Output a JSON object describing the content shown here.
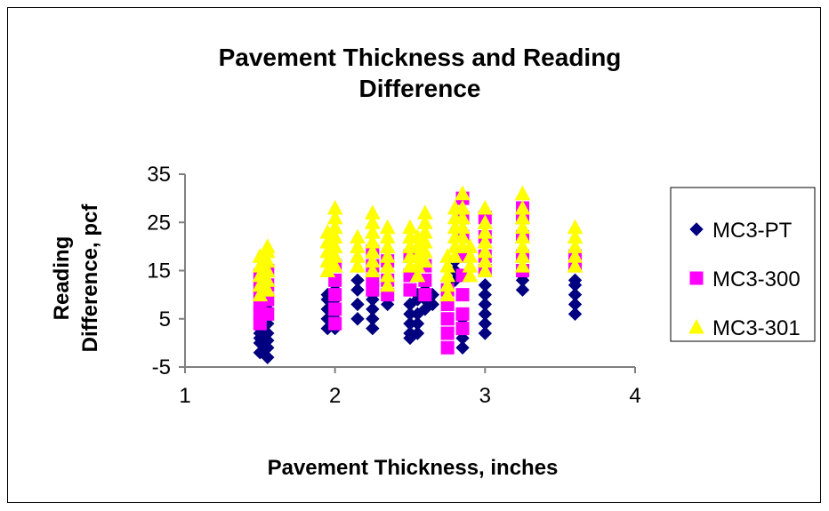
{
  "chart_data": {
    "type": "scatter",
    "title_lines": [
      "Pavement Thickness and Reading",
      "Difference"
    ],
    "xlabel": "Pavement Thickness, inches",
    "ylabel_lines": [
      "Reading",
      "Difference, pcf"
    ],
    "xlim": [
      1,
      4
    ],
    "ylim": [
      -5,
      35
    ],
    "x_ticks": [
      "1",
      "2",
      "3",
      "4"
    ],
    "y_ticks": [
      "35",
      "25",
      "15",
      "5",
      "-5"
    ],
    "grid": false,
    "legend_position": "right",
    "series": [
      {
        "name": "MC3-PT",
        "color": "#000080",
        "marker": "diamond",
        "points": [
          [
            1.5,
            -2
          ],
          [
            1.5,
            0
          ],
          [
            1.5,
            1
          ],
          [
            1.5,
            2
          ],
          [
            1.5,
            3
          ],
          [
            1.55,
            -3
          ],
          [
            1.55,
            -1
          ],
          [
            1.55,
            0.5
          ],
          [
            1.55,
            2
          ],
          [
            1.55,
            4
          ],
          [
            1.55,
            7
          ],
          [
            1.95,
            3
          ],
          [
            1.95,
            5
          ],
          [
            1.95,
            7
          ],
          [
            1.95,
            9
          ],
          [
            1.95,
            10
          ],
          [
            2.0,
            3
          ],
          [
            2.0,
            5
          ],
          [
            2.0,
            7
          ],
          [
            2.0,
            9
          ],
          [
            2.0,
            11
          ],
          [
            2.15,
            5
          ],
          [
            2.15,
            8
          ],
          [
            2.15,
            11
          ],
          [
            2.15,
            13
          ],
          [
            2.25,
            3
          ],
          [
            2.25,
            5
          ],
          [
            2.25,
            7
          ],
          [
            2.25,
            9
          ],
          [
            2.25,
            10
          ],
          [
            2.35,
            8
          ],
          [
            2.35,
            10
          ],
          [
            2.5,
            1
          ],
          [
            2.5,
            2
          ],
          [
            2.5,
            4
          ],
          [
            2.5,
            6
          ],
          [
            2.5,
            8
          ],
          [
            2.55,
            2
          ],
          [
            2.55,
            4
          ],
          [
            2.55,
            6
          ],
          [
            2.55,
            9
          ],
          [
            2.55,
            10
          ],
          [
            2.6,
            7
          ],
          [
            2.6,
            9
          ],
          [
            2.6,
            11
          ],
          [
            2.65,
            8
          ],
          [
            2.65,
            10
          ],
          [
            2.8,
            13
          ],
          [
            2.8,
            15
          ],
          [
            2.8,
            17
          ],
          [
            2.85,
            -1
          ],
          [
            2.85,
            1
          ],
          [
            2.85,
            3
          ],
          [
            2.85,
            5
          ],
          [
            3.0,
            2
          ],
          [
            3.0,
            4
          ],
          [
            3.0,
            6
          ],
          [
            3.0,
            8
          ],
          [
            3.0,
            10
          ],
          [
            3.0,
            12
          ],
          [
            3.25,
            11
          ],
          [
            3.25,
            13
          ],
          [
            3.25,
            14
          ],
          [
            3.6,
            6
          ],
          [
            3.6,
            8
          ],
          [
            3.6,
            10
          ],
          [
            3.6,
            12
          ],
          [
            3.6,
            13
          ]
        ]
      },
      {
        "name": "MC3-300",
        "color": "#FF00FF",
        "marker": "square",
        "points": [
          [
            1.5,
            4
          ],
          [
            1.5,
            6
          ],
          [
            1.5,
            8
          ],
          [
            1.5,
            10
          ],
          [
            1.5,
            12
          ],
          [
            1.5,
            14
          ],
          [
            1.55,
            6
          ],
          [
            1.55,
            9
          ],
          [
            1.55,
            12
          ],
          [
            1.55,
            15
          ],
          [
            2.0,
            4
          ],
          [
            2.0,
            7
          ],
          [
            2.0,
            10
          ],
          [
            2.0,
            13
          ],
          [
            2.0,
            16
          ],
          [
            2.25,
            11
          ],
          [
            2.25,
            13
          ],
          [
            2.25,
            16
          ],
          [
            2.25,
            19
          ],
          [
            2.35,
            10
          ],
          [
            2.35,
            13
          ],
          [
            2.35,
            17
          ],
          [
            2.5,
            11
          ],
          [
            2.5,
            14
          ],
          [
            2.5,
            18
          ],
          [
            2.6,
            10
          ],
          [
            2.6,
            13
          ],
          [
            2.6,
            16
          ],
          [
            2.75,
            -1
          ],
          [
            2.75,
            2
          ],
          [
            2.75,
            5
          ],
          [
            2.75,
            8
          ],
          [
            2.75,
            11
          ],
          [
            2.85,
            3
          ],
          [
            2.85,
            6
          ],
          [
            2.85,
            10
          ],
          [
            2.85,
            14
          ],
          [
            2.85,
            18
          ],
          [
            2.85,
            22
          ],
          [
            2.85,
            26
          ],
          [
            2.85,
            30
          ],
          [
            3.0,
            15
          ],
          [
            3.0,
            18
          ],
          [
            3.0,
            22
          ],
          [
            3.0,
            26
          ],
          [
            3.25,
            15
          ],
          [
            3.25,
            18
          ],
          [
            3.25,
            22
          ],
          [
            3.25,
            26
          ],
          [
            3.25,
            28
          ],
          [
            3.6,
            16
          ],
          [
            3.6,
            18
          ]
        ]
      },
      {
        "name": "MC3-301",
        "color": "#FFFF00",
        "marker": "triangle",
        "points": [
          [
            1.5,
            10
          ],
          [
            1.5,
            12
          ],
          [
            1.5,
            14
          ],
          [
            1.5,
            16
          ],
          [
            1.5,
            18
          ],
          [
            1.55,
            11
          ],
          [
            1.55,
            13
          ],
          [
            1.55,
            15
          ],
          [
            1.55,
            17
          ],
          [
            1.55,
            19
          ],
          [
            1.55,
            20
          ],
          [
            1.95,
            15
          ],
          [
            1.95,
            17
          ],
          [
            1.95,
            19
          ],
          [
            1.95,
            21
          ],
          [
            1.95,
            23
          ],
          [
            2.0,
            16
          ],
          [
            2.0,
            18
          ],
          [
            2.0,
            20
          ],
          [
            2.0,
            22
          ],
          [
            2.0,
            24
          ],
          [
            2.0,
            26
          ],
          [
            2.0,
            28
          ],
          [
            2.15,
            16
          ],
          [
            2.15,
            18
          ],
          [
            2.15,
            20
          ],
          [
            2.15,
            22
          ],
          [
            2.25,
            15
          ],
          [
            2.25,
            17
          ],
          [
            2.25,
            19
          ],
          [
            2.25,
            21
          ],
          [
            2.25,
            23
          ],
          [
            2.25,
            25
          ],
          [
            2.25,
            27
          ],
          [
            2.35,
            12
          ],
          [
            2.35,
            14
          ],
          [
            2.35,
            16
          ],
          [
            2.35,
            18
          ],
          [
            2.35,
            20
          ],
          [
            2.35,
            22
          ],
          [
            2.35,
            24
          ],
          [
            2.5,
            16
          ],
          [
            2.5,
            18
          ],
          [
            2.5,
            20
          ],
          [
            2.5,
            22
          ],
          [
            2.5,
            24
          ],
          [
            2.55,
            14
          ],
          [
            2.55,
            16
          ],
          [
            2.55,
            18
          ],
          [
            2.55,
            20
          ],
          [
            2.55,
            22
          ],
          [
            2.6,
            17
          ],
          [
            2.6,
            19
          ],
          [
            2.6,
            21
          ],
          [
            2.6,
            23
          ],
          [
            2.6,
            25
          ],
          [
            2.6,
            27
          ],
          [
            2.75,
            10
          ],
          [
            2.75,
            12
          ],
          [
            2.75,
            14
          ],
          [
            2.75,
            16
          ],
          [
            2.75,
            18
          ],
          [
            2.8,
            18
          ],
          [
            2.8,
            20
          ],
          [
            2.8,
            22
          ],
          [
            2.8,
            24
          ],
          [
            2.8,
            26
          ],
          [
            2.8,
            28
          ],
          [
            2.85,
            20
          ],
          [
            2.85,
            22
          ],
          [
            2.85,
            24
          ],
          [
            2.85,
            26
          ],
          [
            2.85,
            28
          ],
          [
            2.85,
            31
          ],
          [
            2.9,
            14
          ],
          [
            2.9,
            16
          ],
          [
            2.9,
            18
          ],
          [
            2.9,
            20
          ],
          [
            3.0,
            15
          ],
          [
            3.0,
            17
          ],
          [
            3.0,
            19
          ],
          [
            3.0,
            21
          ],
          [
            3.0,
            23
          ],
          [
            3.0,
            25
          ],
          [
            3.0,
            28
          ],
          [
            3.25,
            16
          ],
          [
            3.25,
            18
          ],
          [
            3.25,
            20
          ],
          [
            3.25,
            22
          ],
          [
            3.25,
            24
          ],
          [
            3.25,
            26
          ],
          [
            3.25,
            28
          ],
          [
            3.25,
            31
          ],
          [
            3.6,
            16
          ],
          [
            3.6,
            18
          ],
          [
            3.6,
            20
          ],
          [
            3.6,
            22
          ],
          [
            3.6,
            24
          ]
        ]
      }
    ]
  }
}
